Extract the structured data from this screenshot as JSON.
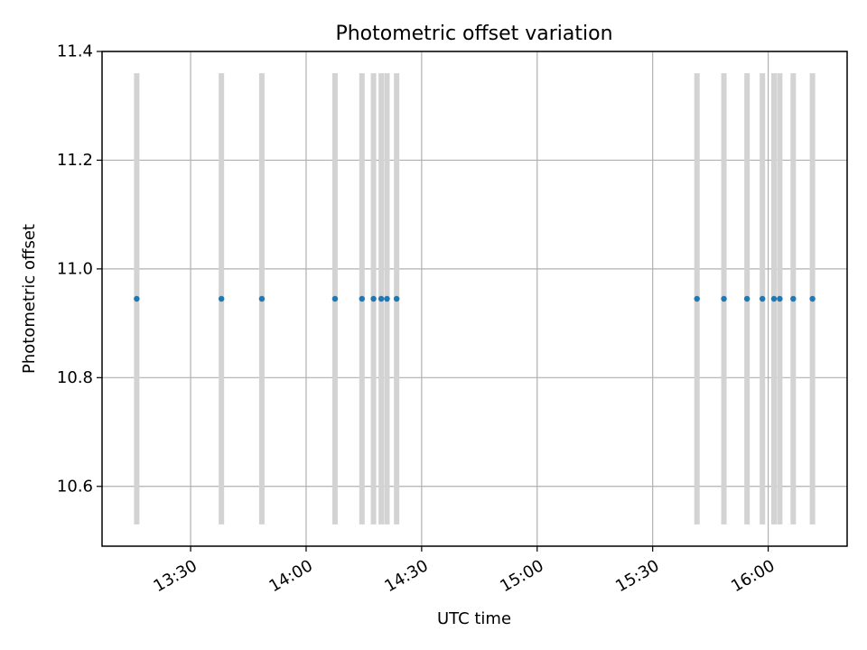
{
  "chart_data": {
    "type": "scatter",
    "title": "Photometric offset variation",
    "xlabel": "UTC time",
    "ylabel": "Photometric offset",
    "x_axis_type": "time",
    "xlim": [
      "13:07:00",
      "16:20:30"
    ],
    "ylim": [
      10.49,
      11.4
    ],
    "x_ticks": [
      "13:30",
      "14:00",
      "14:30",
      "15:00",
      "15:30",
      "16:00"
    ],
    "y_ticks": [
      10.6,
      10.8,
      11.0,
      11.2,
      11.4
    ],
    "y_tick_labels": [
      "10.6",
      "10.8",
      "11.0",
      "11.2",
      "11.4"
    ],
    "grid": true,
    "point_color": "#1f77b4",
    "errorbar_color": "#d3d3d3",
    "series": [
      {
        "x": [
          "13:16:00",
          "13:38:00",
          "13:48:30",
          "14:07:30",
          "14:14:30",
          "14:17:30",
          "14:19:30",
          "14:21:00",
          "14:23:30",
          "15:41:30",
          "15:48:30",
          "15:54:30",
          "15:58:30",
          "16:01:30",
          "16:03:00",
          "16:06:30",
          "16:11:30"
        ],
        "y": [
          10.945,
          10.945,
          10.945,
          10.945,
          10.945,
          10.945,
          10.945,
          10.945,
          10.945,
          10.945,
          10.945,
          10.945,
          10.945,
          10.945,
          10.945,
          10.945,
          10.945
        ],
        "yerr_low": [
          10.53,
          10.53,
          10.53,
          10.53,
          10.53,
          10.53,
          10.53,
          10.53,
          10.53,
          10.53,
          10.53,
          10.53,
          10.53,
          10.53,
          10.53,
          10.53,
          10.53
        ],
        "yerr_high": [
          11.36,
          11.36,
          11.36,
          11.36,
          11.36,
          11.36,
          11.36,
          11.36,
          11.36,
          11.36,
          11.36,
          11.36,
          11.36,
          11.36,
          11.36,
          11.36,
          11.36
        ]
      }
    ]
  }
}
